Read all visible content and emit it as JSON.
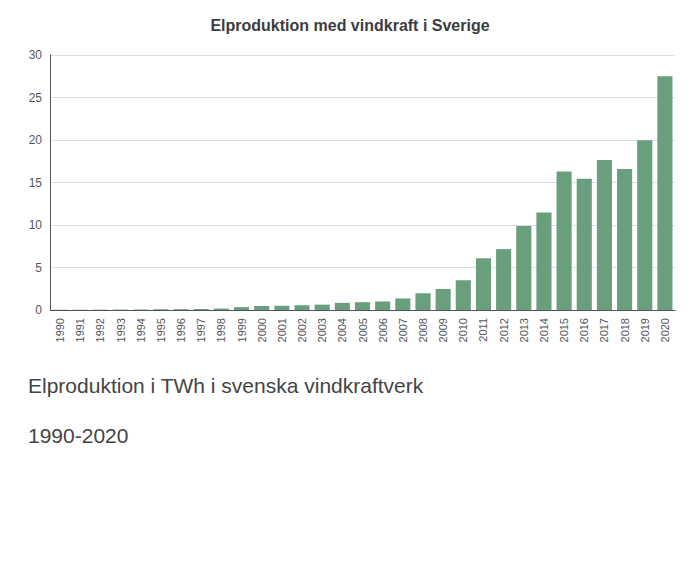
{
  "chart_data": {
    "type": "bar",
    "title": "Elproduktion med vindkraft i Sverige",
    "annotations": [
      "Elproduktion i TWh i svenska vindkraftverk",
      "1990-2020"
    ],
    "categories": [
      "1990",
      "1991",
      "1992",
      "1993",
      "1994",
      "1995",
      "1996",
      "1997",
      "1998",
      "1999",
      "2000",
      "2001",
      "2002",
      "2003",
      "2004",
      "2005",
      "2006",
      "2007",
      "2008",
      "2009",
      "2010",
      "2011",
      "2012",
      "2013",
      "2014",
      "2015",
      "2016",
      "2017",
      "2018",
      "2019",
      "2020"
    ],
    "values": [
      0.02,
      0.03,
      0.04,
      0.05,
      0.06,
      0.09,
      0.1,
      0.12,
      0.17,
      0.34,
      0.46,
      0.5,
      0.56,
      0.63,
      0.84,
      0.92,
      1.0,
      1.36,
      1.97,
      2.47,
      3.5,
      6.08,
      7.16,
      9.87,
      11.48,
      16.29,
      15.44,
      17.64,
      16.6,
      19.98,
      27.49
    ],
    "color": "#6a9f7e",
    "ylim": [
      0,
      30
    ],
    "yticks": [
      0,
      5,
      10,
      15,
      20,
      25,
      30
    ],
    "grid": true
  }
}
